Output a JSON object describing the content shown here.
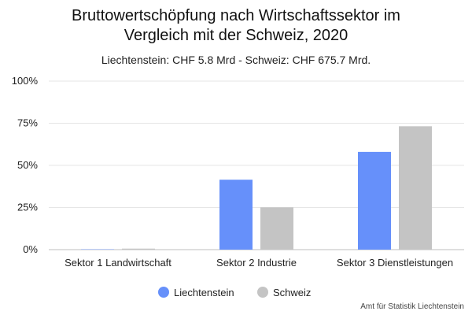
{
  "header": {
    "title_line1": "Bruttowertschöpfung nach Wirtschaftssektor im",
    "title_line2": "Vergleich mit der Schweiz, 2020",
    "subtitle": "Liechtenstein: CHF 5.8 Mrd - Schweiz: CHF 675.7 Mrd."
  },
  "source": "Amt für Statistik Liechtenstein",
  "chart_data": {
    "type": "bar",
    "title": "Bruttowertschöpfung nach Wirtschaftssektor im Vergleich mit der Schweiz, 2020",
    "subtitle": "Liechtenstein: CHF 5.8 Mrd - Schweiz: CHF 675.7 Mrd.",
    "categories": [
      "Sektor 1 Landwirtschaft",
      "Sektor 2 Industrie",
      "Sektor 3 Dienstleistungen"
    ],
    "series": [
      {
        "name": "Liechtenstein",
        "color": "#6690FA",
        "values": [
          0.2,
          41.5,
          58.0
        ]
      },
      {
        "name": "Schweiz",
        "color": "#C4C4C4",
        "values": [
          0.6,
          25.1,
          73.2
        ]
      }
    ],
    "ylim": [
      0,
      100
    ],
    "yticks": [
      "0%",
      "25%",
      "50%",
      "75%",
      "100%"
    ],
    "ytick_values": [
      0,
      25,
      50,
      75,
      100
    ],
    "grid": true,
    "legend": "bottom-center"
  }
}
